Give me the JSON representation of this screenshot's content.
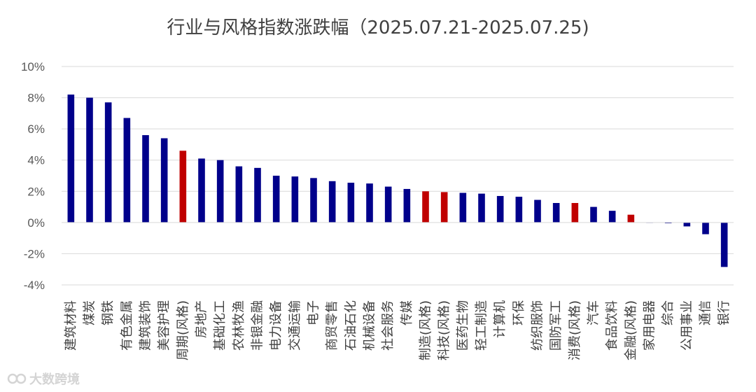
{
  "chart_data": {
    "type": "bar",
    "title": "行业与风格指数涨跌幅（2025.07.21-2025.07.25)",
    "xlabel": "",
    "ylabel": "",
    "ylim": [
      -4,
      10
    ],
    "yticks": [
      -4,
      -2,
      0,
      2,
      4,
      6,
      8,
      10
    ],
    "ytick_format": "percent",
    "grid": "horizontal",
    "legend": "none",
    "colors": {
      "industry": "#00008B",
      "style": "#C00000"
    },
    "categories": [
      "建筑材料",
      "煤炭",
      "钢铁",
      "有色金属",
      "建筑装饰",
      "美容护理",
      "周期(风格)",
      "房地产",
      "基础化工",
      "农林牧渔",
      "非银金融",
      "电力设备",
      "交通运输",
      "电子",
      "商贸零售",
      "石油石化",
      "机械设备",
      "社会服务",
      "传媒",
      "制造(风格)",
      "科技(风格)",
      "医药生物",
      "轻工制造",
      "计算机",
      "环保",
      "纺织服饰",
      "国防军工",
      "消费(风格)",
      "汽车",
      "食品饮料",
      "金融(风格)",
      "家用电器",
      "综合",
      "公用事业",
      "通信",
      "银行"
    ],
    "values": [
      8.2,
      8.0,
      7.7,
      6.7,
      5.6,
      5.4,
      4.6,
      4.1,
      4.0,
      3.6,
      3.5,
      3.0,
      2.95,
      2.85,
      2.65,
      2.55,
      2.5,
      2.3,
      2.15,
      2.0,
      1.95,
      1.9,
      1.85,
      1.7,
      1.65,
      1.45,
      1.25,
      1.25,
      1.0,
      0.75,
      0.5,
      0.0,
      -0.05,
      -0.25,
      -0.75,
      -2.85
    ],
    "is_style": [
      false,
      false,
      false,
      false,
      false,
      false,
      true,
      false,
      false,
      false,
      false,
      false,
      false,
      false,
      false,
      false,
      false,
      false,
      false,
      true,
      true,
      false,
      false,
      false,
      false,
      false,
      false,
      true,
      false,
      false,
      true,
      false,
      false,
      false,
      false,
      false
    ]
  },
  "watermark": {
    "text": "大数跨境",
    "icon": "infinity-logo-icon"
  }
}
